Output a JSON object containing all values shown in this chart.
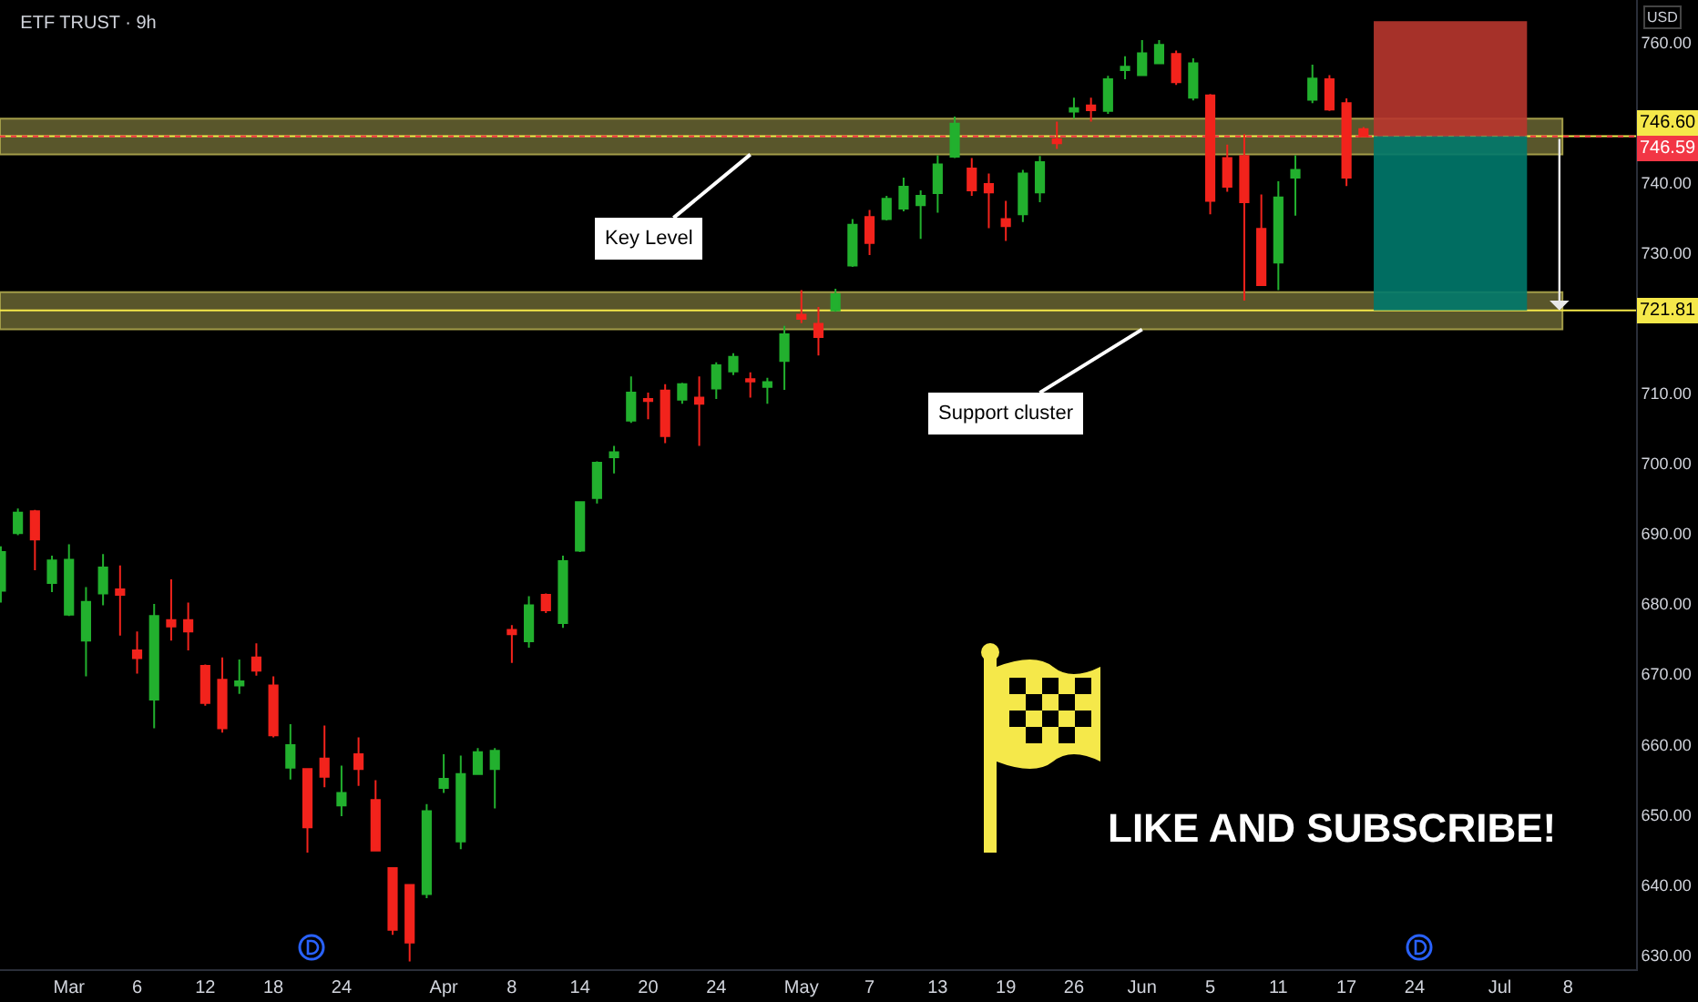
{
  "chart_data": {
    "type": "candlestick",
    "title": "ETF TRUST · 9h",
    "ylabel": "USD",
    "categories": [
      null,
      null,
      null,
      null,
      "Mar",
      null,
      null,
      null,
      "6",
      null,
      null,
      null,
      "12",
      null,
      null,
      null,
      "18",
      null,
      null,
      null,
      "24",
      null,
      null,
      null,
      null,
      null,
      "Apr",
      null,
      null,
      null,
      "8",
      null,
      null,
      null,
      "14",
      null,
      null,
      null,
      "20",
      null,
      null,
      null,
      "24",
      null,
      null,
      null,
      null,
      "May",
      null,
      null,
      null,
      "7",
      null,
      null,
      null,
      "13",
      null,
      null,
      null,
      "19",
      null,
      null,
      null,
      "26",
      null,
      null,
      null,
      "Jun",
      null,
      null,
      null,
      "5",
      null,
      null,
      null,
      "11",
      null,
      null,
      null,
      "17",
      null,
      null,
      null,
      "24",
      null,
      null,
      null,
      null,
      "Jul",
      null,
      null,
      null,
      "8",
      null,
      null,
      null
    ],
    "ohlc": [
      [
        681.9,
        688.2,
        680.2,
        687.4
      ],
      [
        690.1,
        693.6,
        689.8,
        693.0
      ],
      [
        693.2,
        693.4,
        684.8,
        689.2
      ],
      [
        683.0,
        686.9,
        681.7,
        686.2
      ],
      [
        678.5,
        688.5,
        678.3,
        686.3
      ],
      [
        674.8,
        682.4,
        669.7,
        680.3
      ],
      [
        681.5,
        687.1,
        679.8,
        685.2
      ],
      [
        682.1,
        685.5,
        675.5,
        681.3
      ],
      [
        673.4,
        676.1,
        670.1,
        672.3
      ],
      [
        666.4,
        680.0,
        662.3,
        678.3
      ],
      [
        677.7,
        683.5,
        674.8,
        676.8
      ],
      [
        677.7,
        680.2,
        673.4,
        676.1
      ],
      [
        671.2,
        671.4,
        665.5,
        665.9
      ],
      [
        669.2,
        672.4,
        661.7,
        662.3
      ],
      [
        668.4,
        672.1,
        667.2,
        669.0
      ],
      [
        672.4,
        674.4,
        669.8,
        670.5
      ],
      [
        668.4,
        669.7,
        661.0,
        661.3
      ],
      [
        656.7,
        662.9,
        655.0,
        659.9
      ],
      [
        656.5,
        656.5,
        644.6,
        648.2
      ],
      [
        658.0,
        662.7,
        653.9,
        655.4
      ],
      [
        651.3,
        657.0,
        649.8,
        653.1
      ],
      [
        658.6,
        661.0,
        654.1,
        656.5
      ],
      [
        652.1,
        654.9,
        644.9,
        644.9
      ],
      [
        642.4,
        642.4,
        632.9,
        633.6
      ],
      [
        640.0,
        640.0,
        629.1,
        631.8
      ],
      [
        638.7,
        651.5,
        638.1,
        650.5
      ],
      [
        653.8,
        658.6,
        653.1,
        655.1
      ],
      [
        646.2,
        658.4,
        645.1,
        655.8
      ],
      [
        655.8,
        659.5,
        655.7,
        658.9
      ],
      [
        656.5,
        659.5,
        650.9,
        659.1
      ],
      [
        676.3,
        677.0,
        671.6,
        675.7
      ],
      [
        674.7,
        681.1,
        673.8,
        679.8
      ],
      [
        681.3,
        681.5,
        678.7,
        679.1
      ],
      [
        677.3,
        686.9,
        676.6,
        686.1
      ],
      [
        687.6,
        694.6,
        687.4,
        694.5
      ],
      [
        695.1,
        700.3,
        694.3,
        700.1
      ],
      [
        700.9,
        702.5,
        698.6,
        701.6
      ],
      [
        706.1,
        712.4,
        705.8,
        710.1
      ],
      [
        709.2,
        710.1,
        706.3,
        708.9
      ],
      [
        710.4,
        711.3,
        702.9,
        703.9
      ],
      [
        709.1,
        711.5,
        708.5,
        711.3
      ],
      [
        709.4,
        712.4,
        702.5,
        708.5
      ],
      [
        710.7,
        714.4,
        709.2,
        714.0
      ],
      [
        713.1,
        715.7,
        712.6,
        715.2
      ],
      [
        712.0,
        713.0,
        709.4,
        711.7
      ],
      [
        710.9,
        712.2,
        708.5,
        711.6
      ],
      [
        714.6,
        719.6,
        710.5,
        718.4
      ],
      [
        721.2,
        724.7,
        720.0,
        720.6
      ],
      [
        719.9,
        722.3,
        715.4,
        718.0
      ],
      [
        721.8,
        724.9,
        721.6,
        724.1
      ],
      [
        728.2,
        734.8,
        728.0,
        734.0
      ],
      [
        735.1,
        736.1,
        729.7,
        731.4
      ],
      [
        734.8,
        738.1,
        734.6,
        737.7
      ],
      [
        736.3,
        740.7,
        735.9,
        739.4
      ],
      [
        736.8,
        738.9,
        732.0,
        738.1
      ],
      [
        738.5,
        743.9,
        735.7,
        742.6
      ],
      [
        743.7,
        749.4,
        743.5,
        748.4
      ],
      [
        742.0,
        743.5,
        738.1,
        738.9
      ],
      [
        739.8,
        741.3,
        733.5,
        738.6
      ],
      [
        734.8,
        737.4,
        731.7,
        733.8
      ],
      [
        735.5,
        741.8,
        734.4,
        741.3
      ],
      [
        738.6,
        743.8,
        737.2,
        742.9
      ],
      [
        746.2,
        748.7,
        744.8,
        745.6
      ],
      [
        750.1,
        752.1,
        749.1,
        750.6
      ],
      [
        751.0,
        752.1,
        748.7,
        750.3
      ],
      [
        750.2,
        755.2,
        749.8,
        754.7
      ],
      [
        756.0,
        758.0,
        754.7,
        756.5
      ],
      [
        755.3,
        760.3,
        755.2,
        758.4
      ],
      [
        757.0,
        760.3,
        756.9,
        759.6
      ],
      [
        758.3,
        758.8,
        753.9,
        754.3
      ],
      [
        752.1,
        757.7,
        751.7,
        757.0
      ],
      [
        752.4,
        752.6,
        735.5,
        737.4
      ],
      [
        743.5,
        745.4,
        738.7,
        739.4
      ],
      [
        743.8,
        746.9,
        723.2,
        737.2
      ],
      [
        733.4,
        738.3,
        725.4,
        725.4
      ],
      [
        728.6,
        740.2,
        724.7,
        737.9
      ],
      [
        740.7,
        743.9,
        735.3,
        741.8
      ],
      [
        751.8,
        756.8,
        751.3,
        754.8
      ],
      [
        754.7,
        755.3,
        750.2,
        750.4
      ],
      [
        751.3,
        752.0,
        739.5,
        740.7
      ],
      [
        747.6,
        747.9,
        746.5,
        746.59
      ],
      null,
      null,
      null,
      null,
      null,
      null,
      null,
      null,
      null,
      null,
      null,
      null,
      null,
      null,
      null
    ],
    "ylim": [
      628,
      766
    ],
    "yticks": [
      {
        "value": 630,
        "label": "630.00"
      },
      {
        "value": 640,
        "label": "640.00"
      },
      {
        "value": 650,
        "label": "650.00"
      },
      {
        "value": 660,
        "label": "660.00"
      },
      {
        "value": 670,
        "label": "670.00"
      },
      {
        "value": 680,
        "label": "680.00"
      },
      {
        "value": 690,
        "label": "690.00"
      },
      {
        "value": 700,
        "label": "700.00"
      },
      {
        "value": 710,
        "label": "710.00"
      },
      {
        "value": 730,
        "label": "730.00"
      },
      {
        "value": 740,
        "label": "740.00"
      },
      {
        "value": 760,
        "label": "760.00"
      }
    ],
    "bands": [
      {
        "axis": "y",
        "from": 744.0,
        "to": 749.1,
        "label": "Key Level",
        "color": "#77733a"
      },
      {
        "axis": "y",
        "from": 719.1,
        "to": 724.4,
        "label": "Support cluster",
        "color": "#77733a"
      },
      {
        "axis": "y",
        "from": 746.6,
        "to": 763.0,
        "color": "#b8362e"
      },
      {
        "axis": "y",
        "from": 721.81,
        "to": 746.6,
        "color": "#00796b"
      }
    ],
    "ref_lines": [
      {
        "axis": "y",
        "value": 746.6,
        "label": "746.60",
        "color": "#f5e84a",
        "line_style": "solid"
      },
      {
        "axis": "y",
        "value": 746.59,
        "label": "746.59",
        "color": "#f23645",
        "line_style": "dotted"
      },
      {
        "axis": "y",
        "value": 721.81,
        "label": "721.81",
        "color": "#f5e84a",
        "line_style": "solid"
      }
    ],
    "annotations": [
      "LIKE AND SUBSCRIBE!"
    ]
  }
}
